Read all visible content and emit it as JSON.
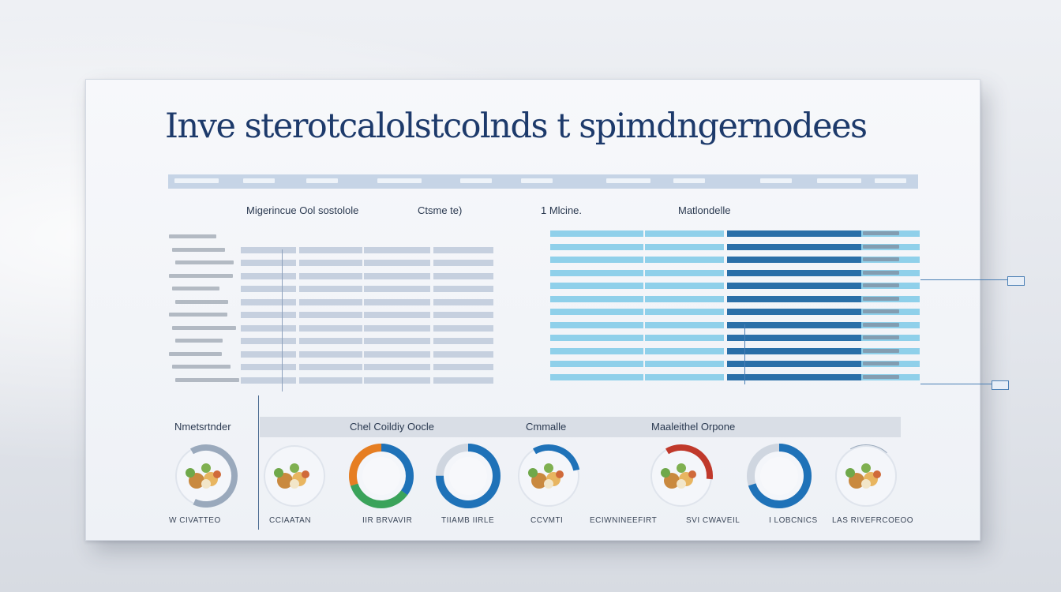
{
  "title": "Inve sterotcalolstcolnds t spimdngernodees",
  "top_header_labels": [
    "",
    "",
    "",
    "",
    "",
    "",
    "",
    "",
    "",
    "",
    "",
    ""
  ],
  "left_table": {
    "header": "Migerincue Ool sostolole",
    "sub_header": "Ctsme te)",
    "rows": 12
  },
  "right_table": {
    "header": "1 Mlcine.",
    "sub_header": "Matlondelle",
    "rows": 12
  },
  "bottom_headers": {
    "left": "Nmetsrtnder",
    "center": "Chel Coildiy Oocle",
    "mid": "Cmmalle",
    "right": "Maaleithel Orpone"
  },
  "colors": {
    "title": "#1d3a6b",
    "light_blue": "#8fd0ea",
    "dark_blue": "#2a6fa8",
    "left_bar": "#c6d0df",
    "donut_blue": "#1f72b8",
    "donut_green": "#3aa35a",
    "donut_orange": "#e67e22",
    "donut_red": "#c0392b"
  },
  "items": [
    {
      "caption": "W CIVATTEO",
      "type": "food-plate-donut",
      "level": 0.65,
      "icons": "food-icon"
    },
    {
      "caption": "CCIAATAN",
      "type": "food-plate"
    },
    {
      "caption": "IIR BRVAVIR",
      "type": "donut",
      "level": 0.0
    },
    {
      "caption": "TIIAMB IIRLE",
      "type": "donut",
      "level": 0.75
    },
    {
      "caption": "CCVMTI",
      "type": "donut-food",
      "level": 0.3
    },
    {
      "caption": "ECIWNINEEFIRT",
      "type": "food-plate-donut",
      "level": 0.35
    },
    {
      "caption": "SVI CWAVEIL",
      "type": "donut",
      "level": 0.7
    },
    {
      "caption": "I LOBCNICS",
      "type": "food-plate-donut",
      "level": 0.2
    },
    {
      "caption": "LAS RIVEFRCOEOO",
      "type": "food-plate"
    }
  ]
}
